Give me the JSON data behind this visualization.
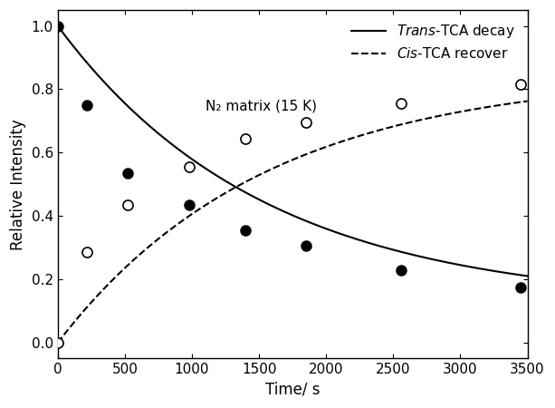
{
  "trans_x": [
    0,
    220,
    520,
    980,
    1400,
    1850,
    2560,
    3450
  ],
  "trans_y": [
    1.0,
    0.75,
    0.535,
    0.435,
    0.355,
    0.305,
    0.23,
    0.175
  ],
  "cis_x": [
    0,
    220,
    520,
    980,
    1400,
    1850,
    2560,
    3450
  ],
  "cis_y": [
    0.0,
    0.285,
    0.435,
    0.555,
    0.645,
    0.695,
    0.755,
    0.815
  ],
  "annotation": "N₂ matrix (15 K)",
  "xlabel": "Time/ s",
  "ylabel": "Relative Intensity",
  "xlim": [
    0,
    3500
  ],
  "ylim": [
    -0.05,
    1.05
  ],
  "xticks": [
    0,
    500,
    1000,
    1500,
    2000,
    2500,
    3000,
    3500
  ],
  "yticks": [
    0.0,
    0.2,
    0.4,
    0.6,
    0.8,
    1.0
  ],
  "color": "#000000",
  "bg_color": "#ffffff",
  "trans_decay_A": 0.88,
  "trans_decay_k": 0.00065,
  "trans_decay_C": 0.12,
  "cis_rise_A": 0.85,
  "cis_rise_k": 0.00065,
  "cis_rise_C": 0.0
}
